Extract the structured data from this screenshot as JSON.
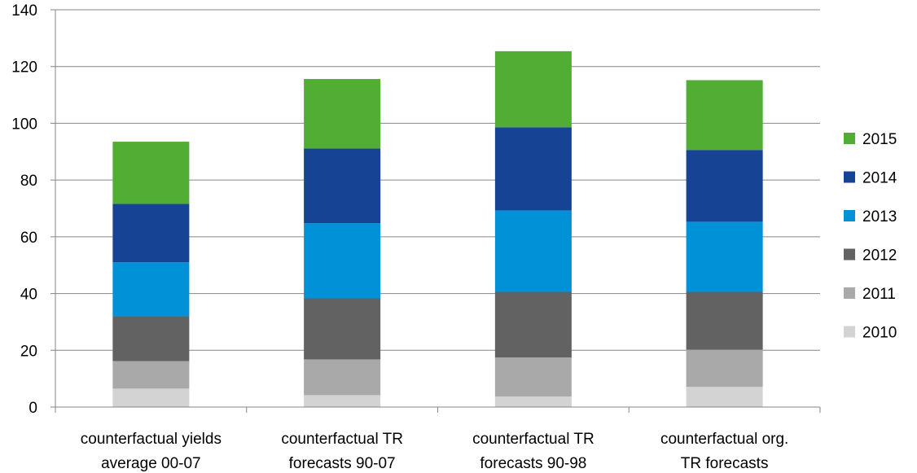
{
  "chart_data": {
    "type": "bar",
    "stacked": true,
    "categories": [
      [
        "counterfactual yields",
        "average 00-07"
      ],
      [
        "counterfactual TR",
        "forecasts 90-07"
      ],
      [
        "counterfactual TR",
        "forecasts 90-98"
      ],
      [
        "counterfactual org.",
        "TR forecasts"
      ]
    ],
    "series": [
      {
        "name": "2010",
        "color": "#d3d3d3",
        "values": [
          6.5,
          4.2,
          3.7,
          7.1
        ]
      },
      {
        "name": "2011",
        "color": "#a9a9a9",
        "values": [
          9.7,
          12.6,
          13.8,
          13.1
        ]
      },
      {
        "name": "2012",
        "color": "#626262",
        "values": [
          15.8,
          21.5,
          23.1,
          20.4
        ]
      },
      {
        "name": "2013",
        "color": "#0091d7",
        "values": [
          19.0,
          26.5,
          28.7,
          24.7
        ]
      },
      {
        "name": "2014",
        "color": "#174395",
        "values": [
          20.6,
          26.3,
          29.3,
          25.3
        ]
      },
      {
        "name": "2015",
        "color": "#52ad34",
        "values": [
          21.9,
          24.5,
          26.8,
          24.6
        ]
      }
    ],
    "ylim": [
      0,
      140
    ],
    "yticks": [
      0,
      20,
      40,
      60,
      80,
      100,
      120,
      140
    ],
    "grid": true,
    "legend_position": "right",
    "title": "",
    "xlabel": "",
    "ylabel": ""
  }
}
